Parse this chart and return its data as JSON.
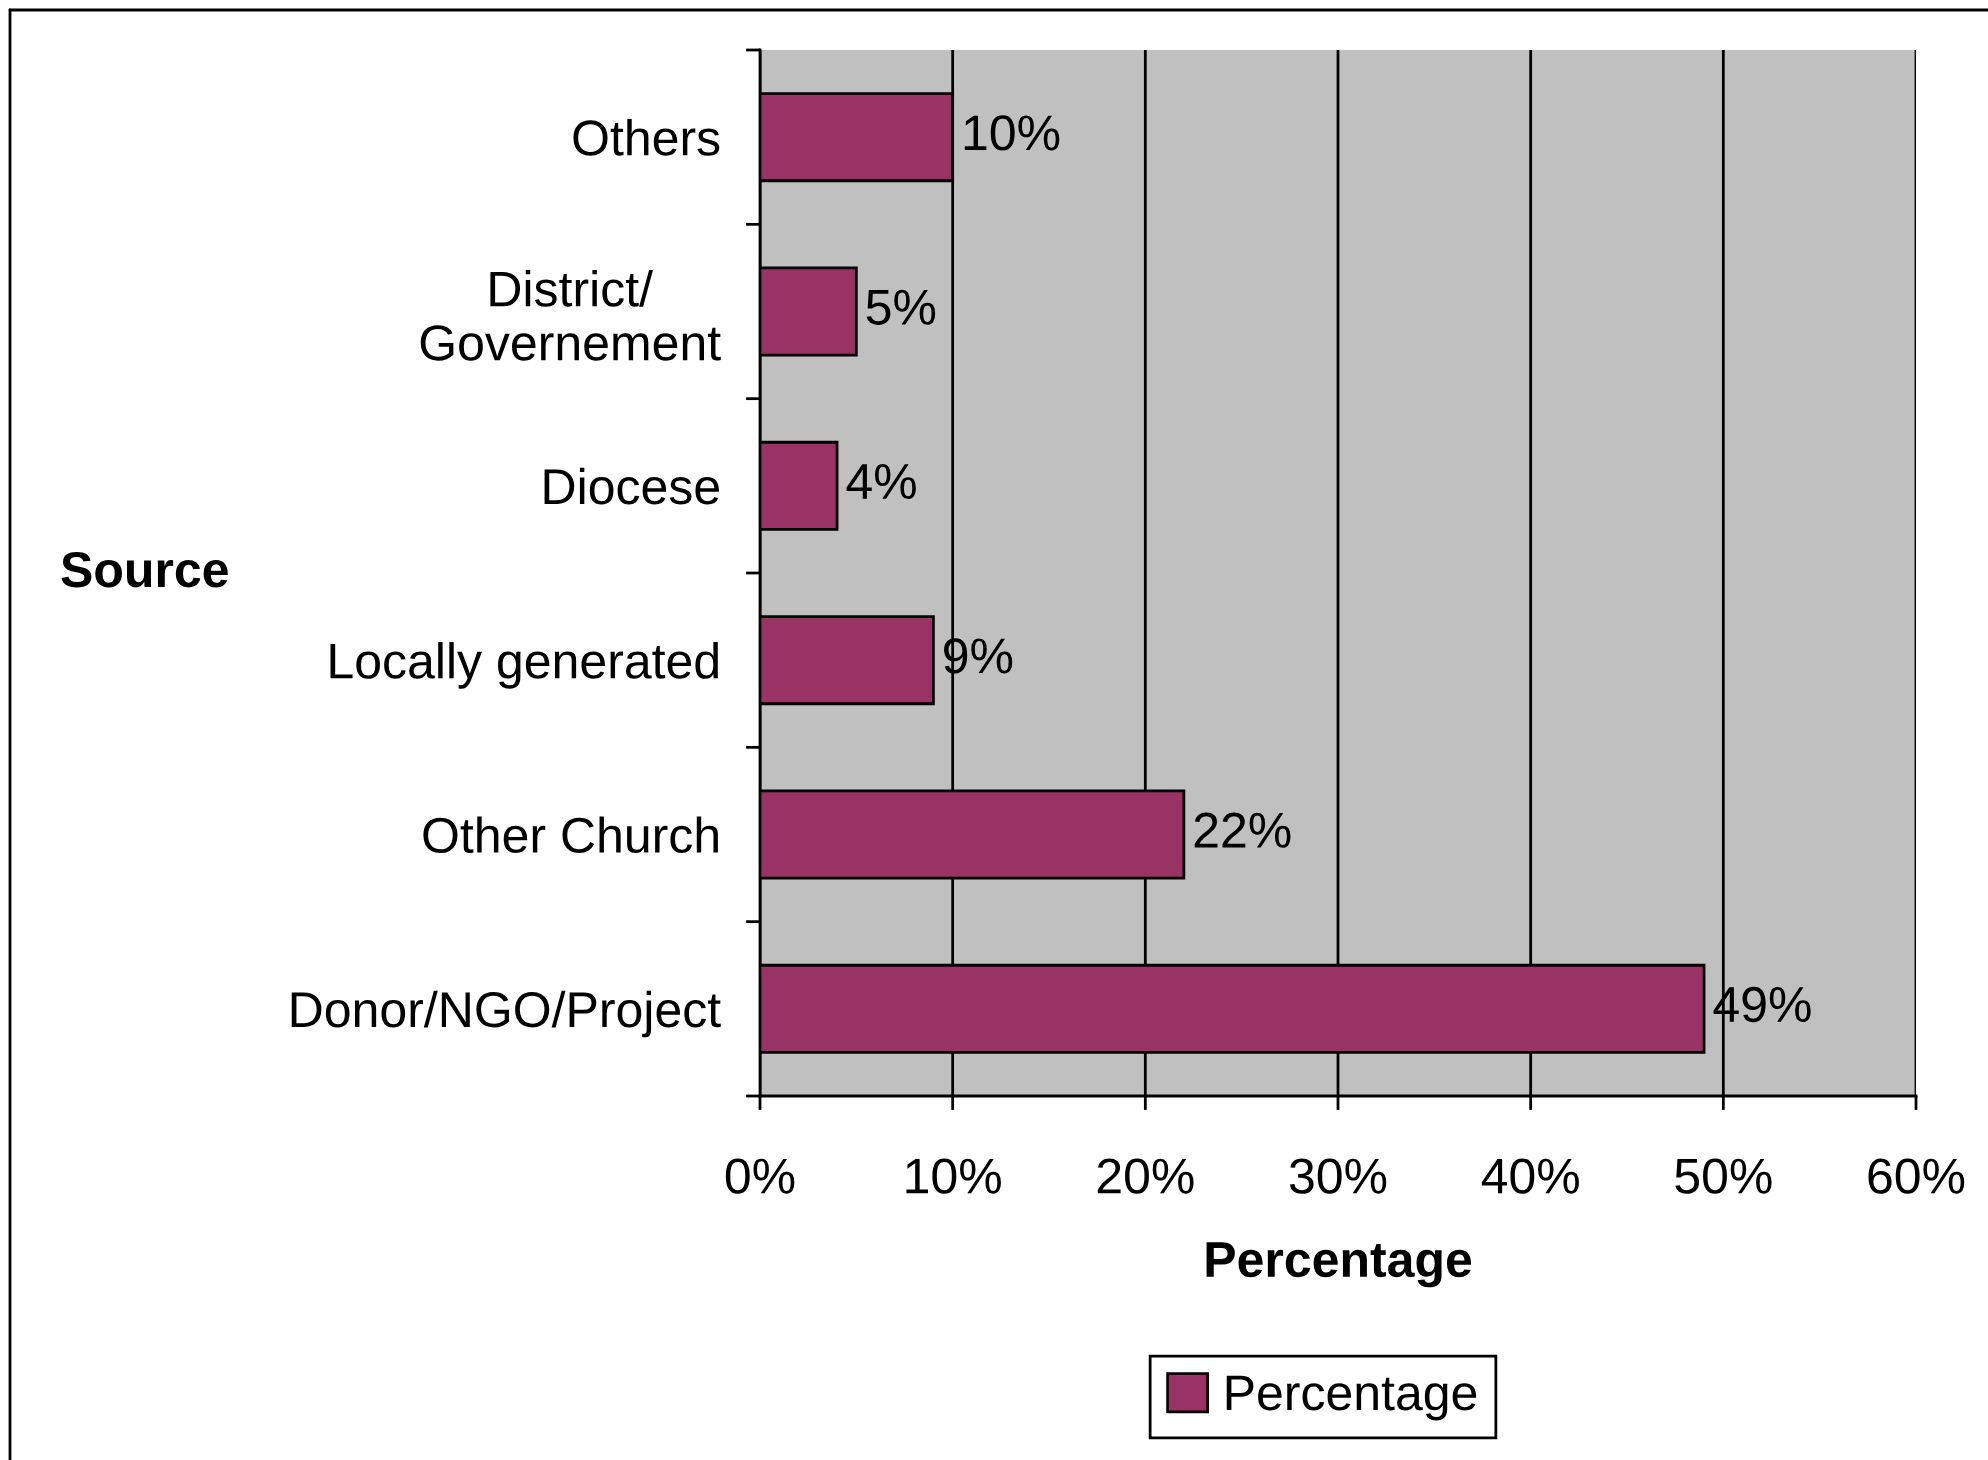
{
  "chart_data": {
    "type": "bar",
    "orientation": "horizontal",
    "ylabel": "Source",
    "xlabel": "Percentage",
    "categories": [
      "Others",
      "District/\nGovernement",
      "Diocese",
      "Locally generated",
      "Other Church",
      "Donor/NGO/Project"
    ],
    "series": [
      {
        "name": "Percentage",
        "color": "#993366",
        "values": [
          10,
          5,
          4,
          9,
          22,
          49
        ],
        "value_labels": [
          "10%",
          "5%",
          "4%",
          "9%",
          "22%",
          "49%"
        ]
      }
    ],
    "xlim": [
      0,
      60
    ],
    "xticks": [
      {
        "value": 0,
        "label": "0%"
      },
      {
        "value": 10,
        "label": "10%"
      },
      {
        "value": 20,
        "label": "20%"
      },
      {
        "value": 30,
        "label": "30%"
      },
      {
        "value": 40,
        "label": "40%"
      },
      {
        "value": 50,
        "label": "50%"
      },
      {
        "value": 60,
        "label": "60%"
      }
    ],
    "grid": "x",
    "legend": "bottom"
  }
}
